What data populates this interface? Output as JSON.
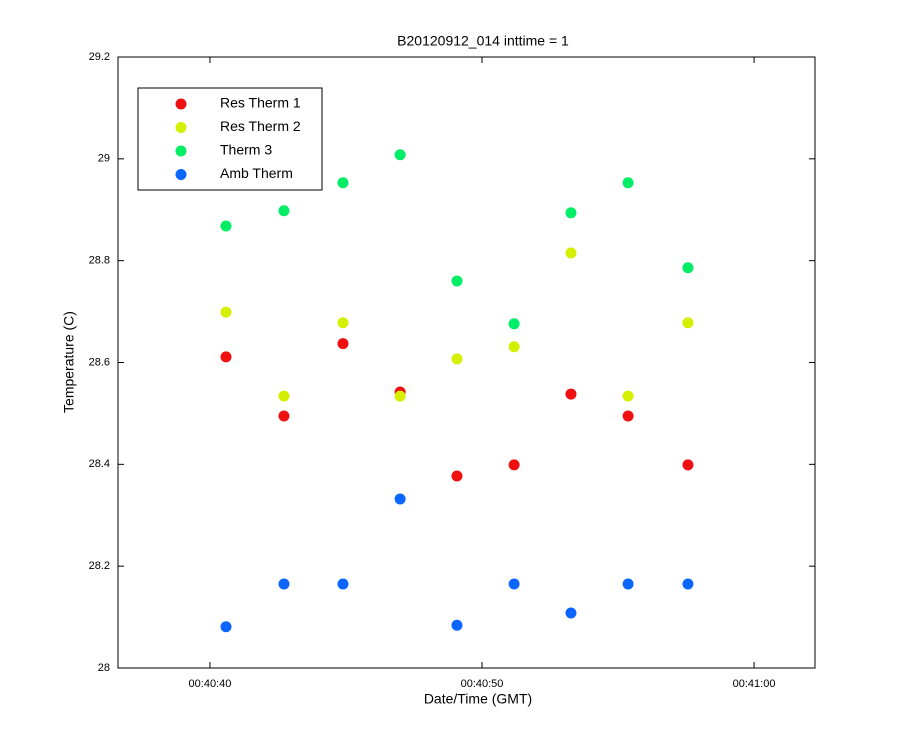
{
  "chart_data": {
    "type": "scatter",
    "title": "B20120912_014 inttime = 1",
    "xlabel": "Date/Time (GMT)",
    "ylabel": "Temperature (C)",
    "x": [
      40.59,
      42.72,
      44.89,
      46.99,
      49.08,
      51.18,
      53.27,
      55.37,
      57.57
    ],
    "series": [
      {
        "name": "Res Therm 1",
        "color": "#f01010",
        "values": [
          28.611,
          28.495,
          28.637,
          28.542,
          28.377,
          28.399,
          28.538,
          28.495,
          28.399
        ]
      },
      {
        "name": "Res Therm 2",
        "color": "#d4f000",
        "values": [
          28.699,
          28.534,
          28.678,
          28.534,
          28.607,
          28.631,
          28.815,
          28.534,
          28.678
        ]
      },
      {
        "name": "Therm 3",
        "color": "#00ee66",
        "values": [
          28.868,
          28.898,
          28.953,
          29.008,
          28.76,
          28.676,
          28.894,
          28.953,
          28.786
        ]
      },
      {
        "name": "Amb Therm",
        "color": "#0a66ff",
        "values": [
          28.081,
          28.165,
          28.165,
          28.332,
          28.084,
          28.165,
          28.108,
          28.165,
          28.165
        ]
      }
    ],
    "xlim": [
      36.62,
      62.24
    ],
    "xticks": [
      {
        "value": 40,
        "label": "00:40:40"
      },
      {
        "value": 50,
        "label": "00:40:50"
      },
      {
        "value": 60,
        "label": "00:41:00"
      }
    ],
    "ylim": [
      28,
      29.2
    ],
    "yticks": [
      28,
      28.2,
      28.4,
      28.6,
      28.8,
      29,
      29.2
    ],
    "legend": "upper-left",
    "grid": false
  }
}
